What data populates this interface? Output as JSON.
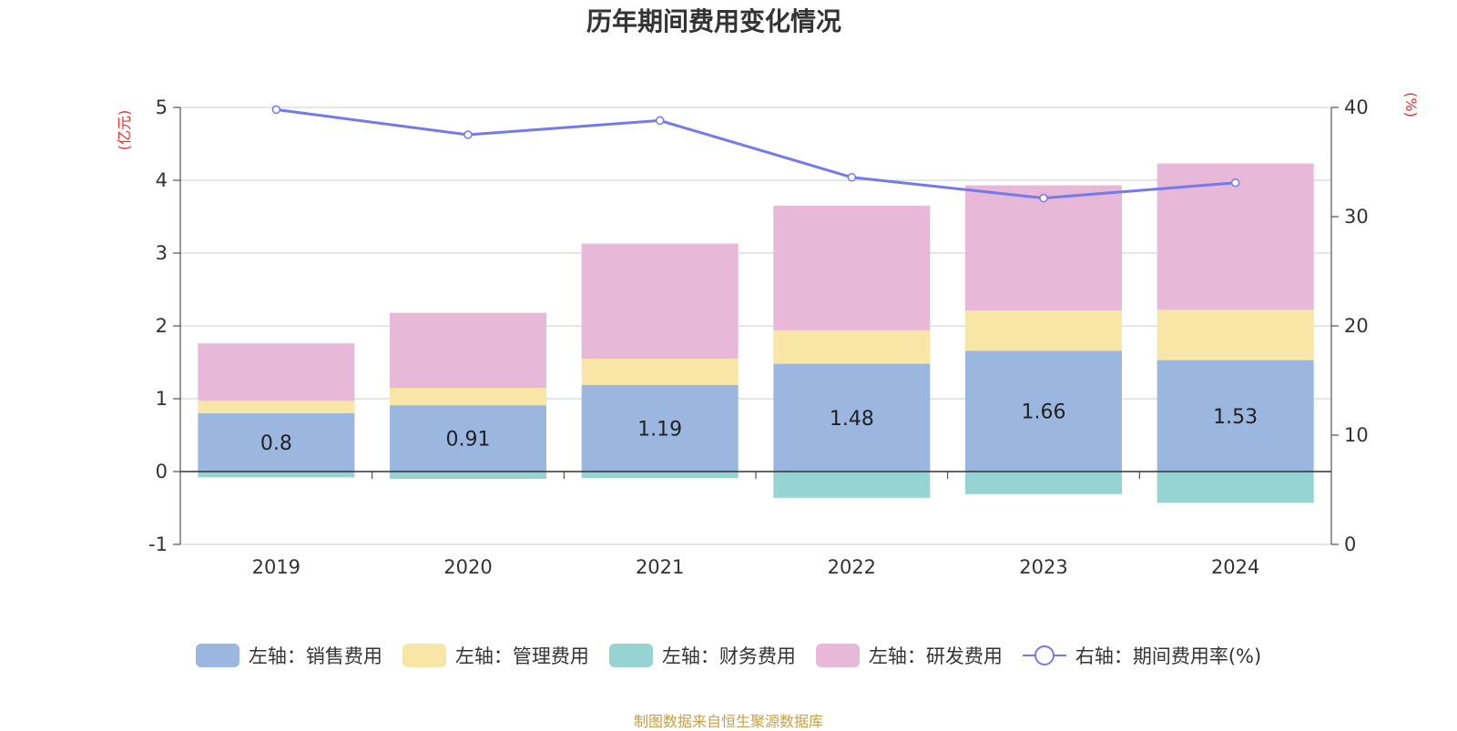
{
  "chart_data": {
    "type": "bar",
    "title": "历年期间费用变化情况",
    "left_axis_unit": "(亿元)",
    "right_axis_unit": "(%)",
    "categories": [
      "2019",
      "2020",
      "2021",
      "2022",
      "2023",
      "2024"
    ],
    "y_left": {
      "range": [
        -1,
        5
      ],
      "ticks": [
        "5",
        "4",
        "3",
        "2",
        "1",
        "0",
        "-1"
      ],
      "tick_values": [
        5,
        4,
        3,
        2,
        1,
        0,
        -1
      ]
    },
    "y_right": {
      "range": [
        0,
        40
      ],
      "ticks": [
        "40",
        "30",
        "20",
        "10",
        "0"
      ],
      "tick_values": [
        40,
        30,
        20,
        10,
        0
      ]
    },
    "grid": true,
    "stacked": true,
    "series": [
      {
        "name": "左轴：销售费用",
        "color": "#9bb7e0",
        "axis": "left",
        "type": "bar",
        "values": [
          0.8,
          0.91,
          1.19,
          1.48,
          1.66,
          1.53
        ],
        "labels": [
          "0.8",
          "0.91",
          "1.19",
          "1.48",
          "1.66",
          "1.53"
        ]
      },
      {
        "name": "左轴：管理费用",
        "color": "#f7e6a6",
        "axis": "left",
        "type": "bar",
        "values": [
          0.17,
          0.24,
          0.36,
          0.46,
          0.55,
          0.69
        ]
      },
      {
        "name": "左轴：财务费用",
        "color": "#96d4d3",
        "axis": "left",
        "type": "bar",
        "values": [
          -0.08,
          -0.1,
          -0.09,
          -0.36,
          -0.31,
          -0.43
        ]
      },
      {
        "name": "左轴：研发费用",
        "color": "#e7b8d8",
        "axis": "left",
        "type": "bar",
        "values": [
          0.79,
          1.03,
          1.58,
          1.71,
          1.72,
          2.01
        ]
      },
      {
        "name": "右轴：期间费用率(%)",
        "color": "#7479ec",
        "axis": "right",
        "type": "line",
        "values": [
          39.8,
          37.5,
          38.8,
          33.6,
          31.7,
          33.1
        ]
      }
    ],
    "legend_position": "bottom",
    "source": "制图数据来自恒生聚源数据库"
  }
}
